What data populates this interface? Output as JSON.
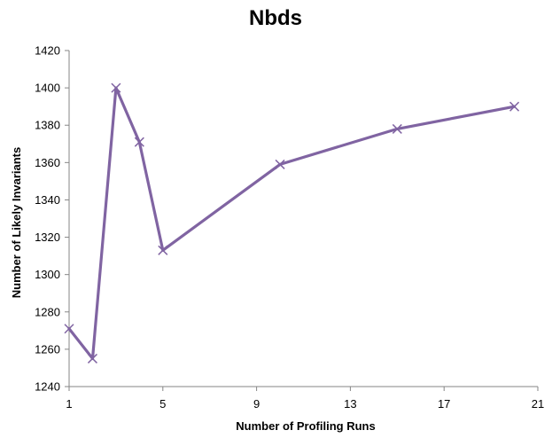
{
  "chart_data": {
    "type": "line",
    "title": "Nbds",
    "xlabel": "Number of Profiling Runs",
    "ylabel": "Number of Likely Invariants",
    "xlim": [
      1,
      21
    ],
    "ylim": [
      1240,
      1420
    ],
    "x_ticks": [
      "1",
      "5",
      "9",
      "13",
      "17",
      "21"
    ],
    "y_ticks": [
      "1240",
      "1260",
      "1280",
      "1300",
      "1320",
      "1340",
      "1360",
      "1380",
      "1400",
      "1420"
    ],
    "grid": false,
    "legend": "none",
    "marker": "x",
    "series": [
      {
        "x": [
          1,
          2,
          3,
          4,
          5,
          10,
          15,
          20
        ],
        "values": [
          1271,
          1255,
          1400,
          1371,
          1313,
          1359,
          1378,
          1390
        ],
        "color": "#8064A2"
      }
    ]
  }
}
